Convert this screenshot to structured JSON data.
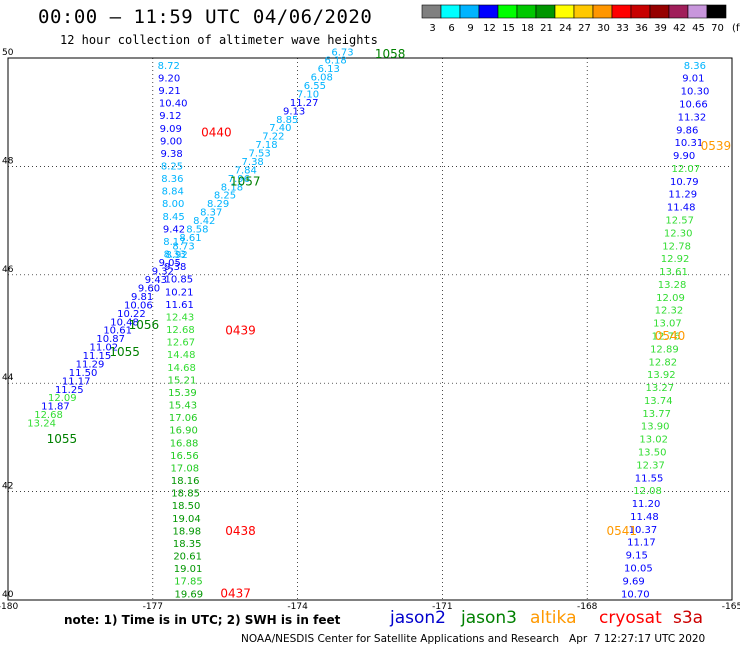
{
  "header": {
    "title": "00:00 – 11:59 UTC 04/06/2020",
    "subtitle": "12 hour collection of altimeter wave heights"
  },
  "legend": {
    "swatches": [
      {
        "label": "3",
        "color": "#808080"
      },
      {
        "label": "6",
        "color": "#00ffff"
      },
      {
        "label": "9",
        "color": "#00b4ff"
      },
      {
        "label": "12",
        "color": "#0000ff"
      },
      {
        "label": "15",
        "color": "#00ff00"
      },
      {
        "label": "18",
        "color": "#00c800"
      },
      {
        "label": "21",
        "color": "#009600"
      },
      {
        "label": "24",
        "color": "#ffff00"
      },
      {
        "label": "27",
        "color": "#ffc800"
      },
      {
        "label": "30",
        "color": "#ff9600"
      },
      {
        "label": "33",
        "color": "#ff0000"
      },
      {
        "label": "36",
        "color": "#c80000"
      },
      {
        "label": "39",
        "color": "#960000"
      },
      {
        "label": "42",
        "color": "#a01e5a"
      },
      {
        "label": "45",
        "color": "#c896dc"
      },
      {
        "label": "70",
        "color": "#000000"
      }
    ],
    "units": "(ft)"
  },
  "footer": {
    "note": "note:  1) Time is in UTC;  2) SWH is in feet",
    "satellites": [
      {
        "name": "jason2",
        "color": "#0000cc"
      },
      {
        "name": "jason3",
        "color": "#008000"
      },
      {
        "name": "altika",
        "color": "#ff9900"
      },
      {
        "name": "cryosat",
        "color": "#ff0000"
      },
      {
        "name": "s3a",
        "color": "#cc0000"
      }
    ],
    "credit": "NOAA/NESDIS Center for Satellite Applications and Research   Apr  7 12:27:17 UTC 2020"
  },
  "chart_data": {
    "type": "scatter",
    "xlim": [
      -180,
      -165
    ],
    "ylim": [
      40,
      50
    ],
    "x_ticks": [
      "-180",
      "-177",
      "-174",
      "-171",
      "-168",
      "-165"
    ],
    "y_ticks": [
      "40",
      "42",
      "44",
      "46",
      "48",
      "50"
    ],
    "grid": "dotted",
    "tracks": [
      {
        "name": "track-1",
        "x_start": -176.9,
        "y_start": 49.8,
        "x_end": -176.55,
        "y_end": 40.05,
        "values": [
          "8.72",
          "9.20",
          "9.21",
          "10.40",
          "9.12",
          "9.09",
          "9.00",
          "9.38",
          "8.25",
          "8.36",
          "8.84",
          "8.00",
          "8.45",
          "9.42",
          "8.17",
          "8.33",
          "9.38",
          "10.85",
          "10.21",
          "11.61",
          "12.43",
          "12.68",
          "12.67",
          "14.48",
          "14.68",
          "15.21",
          "15.39",
          "15.43",
          "17.06",
          "16.90",
          "16.88",
          "16.56",
          "17.08",
          "18.16",
          "18.85",
          "18.50",
          "19.04",
          "18.98",
          "18.35",
          "20.61",
          "19.01",
          "17.85",
          "19.69"
        ],
        "time_labels": [
          {
            "text": "0440",
            "x": -176.0,
            "y": 48.55,
            "color": "#ff0000"
          },
          {
            "text": "0439",
            "x": -175.5,
            "y": 44.9,
            "color": "#ff0000"
          },
          {
            "text": "0438",
            "x": -175.5,
            "y": 41.2,
            "color": "#ff0000"
          },
          {
            "text": "0437",
            "x": -175.6,
            "y": 40.05,
            "color": "#ff0000"
          }
        ]
      },
      {
        "name": "track-2",
        "x_start": -166.0,
        "y_start": 49.8,
        "x_end": -167.3,
        "y_end": 40.05,
        "values": [
          "8.36",
          "9.01",
          "10.30",
          "10.66",
          "11.32",
          "9.86",
          "10.31",
          "9.90",
          "12.07",
          "10.79",
          "11.29",
          "11.48",
          "12.57",
          "12.30",
          "12.78",
          "12.92",
          "13.61",
          "13.28",
          "12.09",
          "12.32",
          "13.07",
          "12.76",
          "12.89",
          "12.82",
          "13.92",
          "13.27",
          "13.74",
          "13.77",
          "13.90",
          "13.02",
          "13.50",
          "12.37",
          "11.55",
          "12.08",
          "11.20",
          "11.48",
          "10.37",
          "11.17",
          "9.15",
          "10.05",
          "9.69",
          "10.70"
        ],
        "time_labels": [
          {
            "text": "0539",
            "x": -165.65,
            "y": 48.3,
            "color": "#ff9900"
          },
          {
            "text": "0540",
            "x": -166.6,
            "y": 44.8,
            "color": "#ff9900"
          },
          {
            "text": "0541",
            "x": -167.6,
            "y": 41.2,
            "color": "#ff9900"
          }
        ]
      },
      {
        "name": "track-3",
        "x_start": -173.3,
        "y_start": 50.05,
        "x_end": -179.6,
        "y_end": 43.2,
        "values": [
          "6.73",
          "6.18",
          "6.13",
          "6.08",
          "6.55",
          "7.10",
          "11.27",
          "9.13",
          "8.85",
          "7.40",
          "7.22",
          "7.18",
          "7.53",
          "7.38",
          "7.84",
          "7.96",
          "8.18",
          "8.25",
          "8.29",
          "8.37",
          "8.42",
          "8.58",
          "8.61",
          "8.73",
          "8.92",
          "9.05",
          "9.32",
          "9.43",
          "9.60",
          "9.81",
          "10.06",
          "10.22",
          "10.48",
          "10.61",
          "10.87",
          "11.02",
          "11.15",
          "11.29",
          "11.50",
          "11.17",
          "11.25",
          "12.09",
          "11.87",
          "12.68",
          "13.24"
        ],
        "time_labels": [
          {
            "text": "1058",
            "x": -172.4,
            "y": 50.0,
            "color": "#008000"
          },
          {
            "text": "1057",
            "x": -175.4,
            "y": 47.65,
            "color": "#008000"
          },
          {
            "text": "1056",
            "x": -177.5,
            "y": 45.0,
            "color": "#008000"
          },
          {
            "text": "1055",
            "x": -177.9,
            "y": 44.5,
            "color": "#008000"
          },
          {
            "text": "1055",
            "x": -179.2,
            "y": 42.9,
            "color": "#008000"
          }
        ]
      }
    ]
  }
}
